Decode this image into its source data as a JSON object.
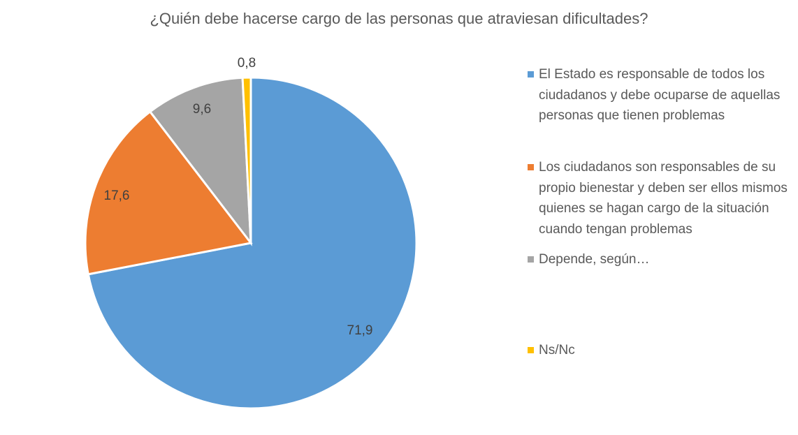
{
  "chart_data": {
    "type": "pie",
    "title": "¿Quién debe hacerse cargo de las personas que atraviesan dificultades?",
    "legend_position": "right",
    "slices": [
      {
        "name": "El Estado es responsable de todos los ciudadanos y debe ocuparse de aquellas personas que tienen problemas",
        "value": 71.9,
        "label": "71,9",
        "color": "#5B9BD5"
      },
      {
        "name": "Los ciudadanos son responsables de su propio bienestar y deben ser ellos mismos quienes se hagan cargo de la situación cuando tengan problemas",
        "value": 17.6,
        "label": "17,6",
        "color": "#ED7D31"
      },
      {
        "name": "Depende, según…",
        "value": 9.6,
        "label": "9,6",
        "color": "#A5A5A5"
      },
      {
        "name": "Ns/Nc",
        "value": 0.8,
        "label": "0,8",
        "color": "#FFC000"
      }
    ]
  }
}
